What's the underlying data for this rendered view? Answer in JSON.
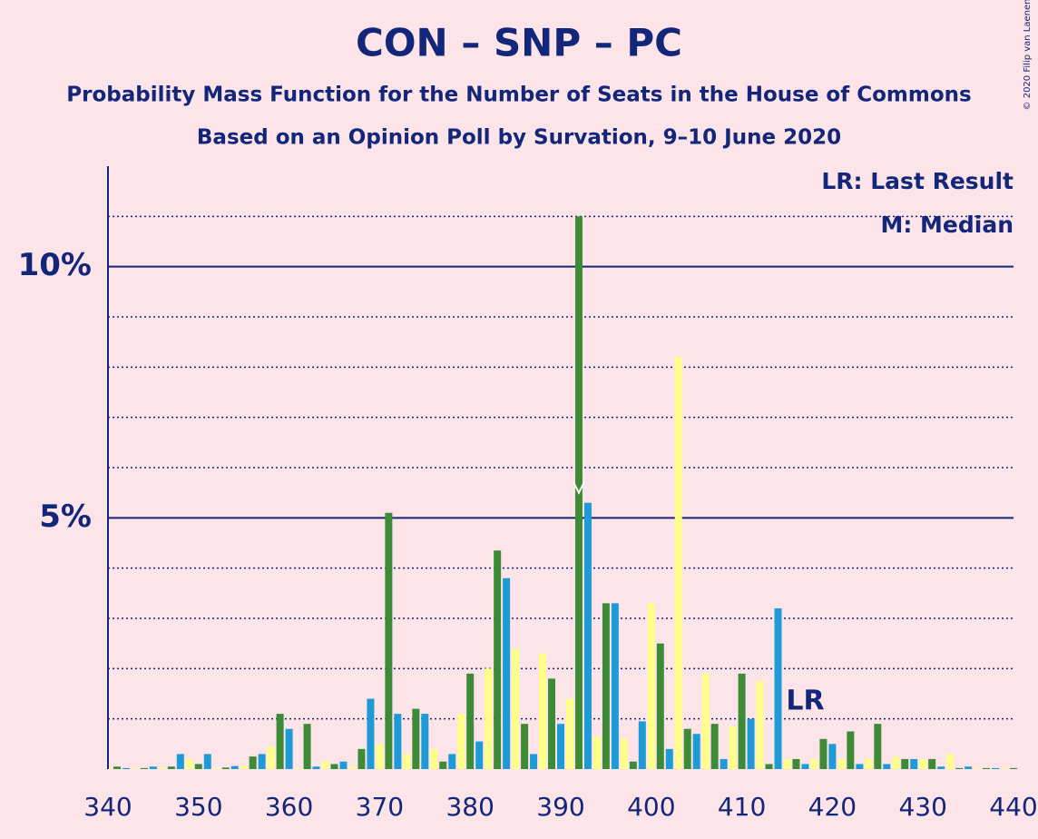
{
  "chart_data": {
    "type": "bar",
    "title": "CON – SNP – PC",
    "subtitle": "Probability Mass Function for the Number of Seats in the House of Commons",
    "subtitle2": "Based on an Opinion Poll by Survation, 9–10 June 2020",
    "copyright": "© 2020 Filip van Laenen",
    "legend_lr": "LR: Last Result",
    "legend_median": "M: Median",
    "lr_label": "LR",
    "last_result": 417,
    "median": 392,
    "palette": [
      "#ffff8a",
      "#3d8b37",
      "#1e9ad6"
    ],
    "categories": [
      340,
      341,
      342,
      343,
      344,
      345,
      346,
      347,
      348,
      349,
      350,
      351,
      352,
      353,
      354,
      355,
      356,
      357,
      358,
      359,
      360,
      361,
      362,
      363,
      364,
      365,
      366,
      367,
      368,
      369,
      370,
      371,
      372,
      373,
      374,
      375,
      376,
      377,
      378,
      379,
      380,
      381,
      382,
      383,
      384,
      385,
      386,
      387,
      388,
      389,
      390,
      391,
      392,
      393,
      394,
      395,
      396,
      397,
      398,
      399,
      400,
      401,
      402,
      403,
      404,
      405,
      406,
      407,
      408,
      409,
      410,
      411,
      412,
      413,
      414,
      415,
      416,
      417,
      418,
      419,
      420,
      421,
      422,
      423,
      424,
      425,
      426,
      427,
      428,
      429,
      430,
      431,
      432,
      433,
      434,
      435,
      436,
      437,
      438,
      439,
      440
    ],
    "values": [
      0.02,
      0.05,
      0.02,
      0.02,
      0.02,
      0.05,
      0.03,
      0.05,
      0.3,
      0.2,
      0.1,
      0.3,
      0.02,
      0.03,
      0.06,
      0.07,
      0.25,
      0.3,
      0.45,
      1.1,
      0.8,
      0.02,
      0.9,
      0.05,
      0.15,
      0.1,
      0.15,
      0.05,
      0.4,
      1.4,
      0.5,
      5.1,
      1.1,
      0.3,
      1.2,
      1.1,
      0.4,
      0.15,
      0.3,
      1.1,
      1.9,
      0.55,
      2.0,
      4.35,
      3.8,
      2.4,
      0.9,
      0.3,
      2.3,
      1.8,
      0.9,
      1.4,
      11.0,
      5.3,
      0.65,
      3.3,
      3.3,
      0.6,
      0.15,
      0.95,
      3.3,
      2.5,
      0.4,
      8.2,
      0.8,
      0.7,
      1.9,
      0.9,
      0.2,
      0.85,
      1.9,
      1.0,
      1.75,
      0.1,
      3.2,
      0.2,
      0.2,
      0.1,
      0.2,
      0.6,
      0.5,
      0.2,
      0.75,
      0.1,
      0.2,
      0.9,
      0.1,
      0.25,
      0.2,
      0.2,
      0.2,
      0.2,
      0.05,
      0.3,
      0.02,
      0.05,
      0.02,
      0.02,
      0.02,
      0.02,
      0.02
    ],
    "xlim": [
      340,
      440
    ],
    "xticks": [
      340,
      350,
      360,
      370,
      380,
      390,
      400,
      410,
      420,
      430,
      440
    ],
    "ylim": [
      0,
      12
    ],
    "yticks": [
      {
        "value": 5,
        "label": "5%"
      },
      {
        "value": 10,
        "label": "10%"
      }
    ],
    "minor_yticks": [
      1,
      2,
      3,
      4,
      6,
      7,
      8,
      9,
      11
    ],
    "grid": true
  }
}
